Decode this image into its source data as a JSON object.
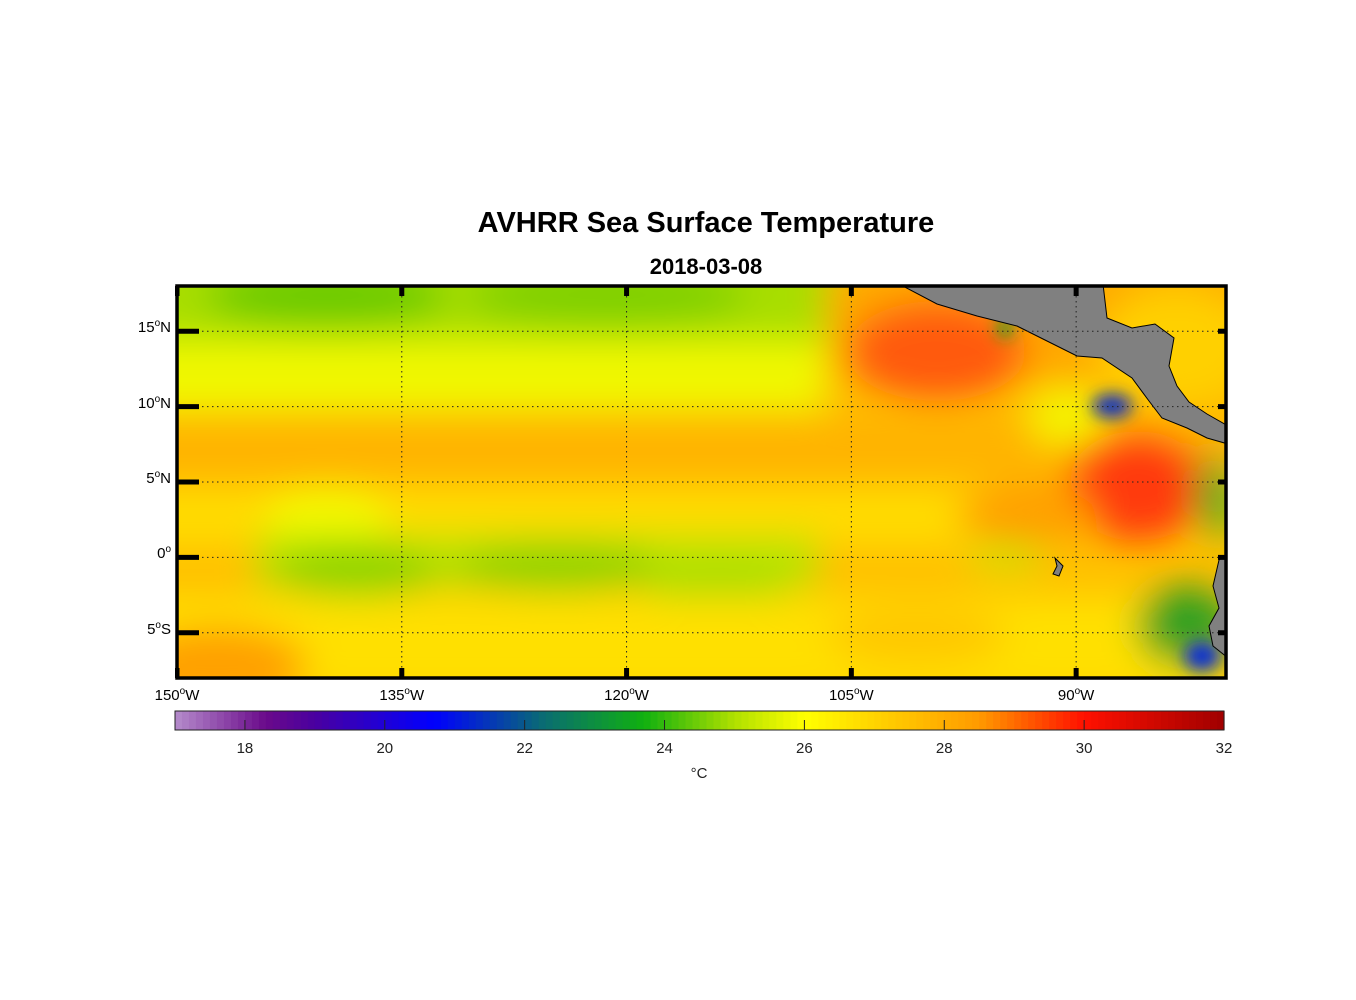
{
  "chart_data": {
    "type": "heatmap",
    "title": "AVHRR Sea Surface Temperature",
    "subtitle": "2018-03-08",
    "lon_range": [
      -150,
      -80
    ],
    "lat_range": [
      -8,
      18
    ],
    "grid": true,
    "y_ticks": [
      {
        "value": 15,
        "deg": "15",
        "hemi": "N"
      },
      {
        "value": 10,
        "deg": "10",
        "hemi": "N"
      },
      {
        "value": 5,
        "deg": "5",
        "hemi": "N"
      },
      {
        "value": 0,
        "deg": "0",
        "hemi": ""
      },
      {
        "value": -5,
        "deg": "5",
        "hemi": "S"
      }
    ],
    "x_ticks": [
      {
        "value": -150,
        "deg": "150",
        "hemi": "W"
      },
      {
        "value": -135,
        "deg": "135",
        "hemi": "W"
      },
      {
        "value": -120,
        "deg": "120",
        "hemi": "W"
      },
      {
        "value": -105,
        "deg": "105",
        "hemi": "W"
      },
      {
        "value": -90,
        "deg": "90",
        "hemi": "W"
      }
    ],
    "colorbar": {
      "range": [
        17,
        32
      ],
      "ticks": [
        "18",
        "20",
        "22",
        "24",
        "26",
        "28",
        "30",
        "32"
      ],
      "unit": "°C",
      "stops": [
        [
          17,
          "#b58ccc"
        ],
        [
          18.3,
          "#6a0a8a"
        ],
        [
          19,
          "#4a00a0"
        ],
        [
          20.7,
          "#0000ff"
        ],
        [
          22.3,
          "#0a6e70"
        ],
        [
          23.7,
          "#10b010"
        ],
        [
          25,
          "#b0e000"
        ],
        [
          26,
          "#ffff00"
        ],
        [
          27,
          "#ffd400"
        ],
        [
          28.5,
          "#ff9a00"
        ],
        [
          30,
          "#ff1000"
        ],
        [
          32,
          "#a00000"
        ]
      ]
    },
    "land_color": "#808080"
  }
}
